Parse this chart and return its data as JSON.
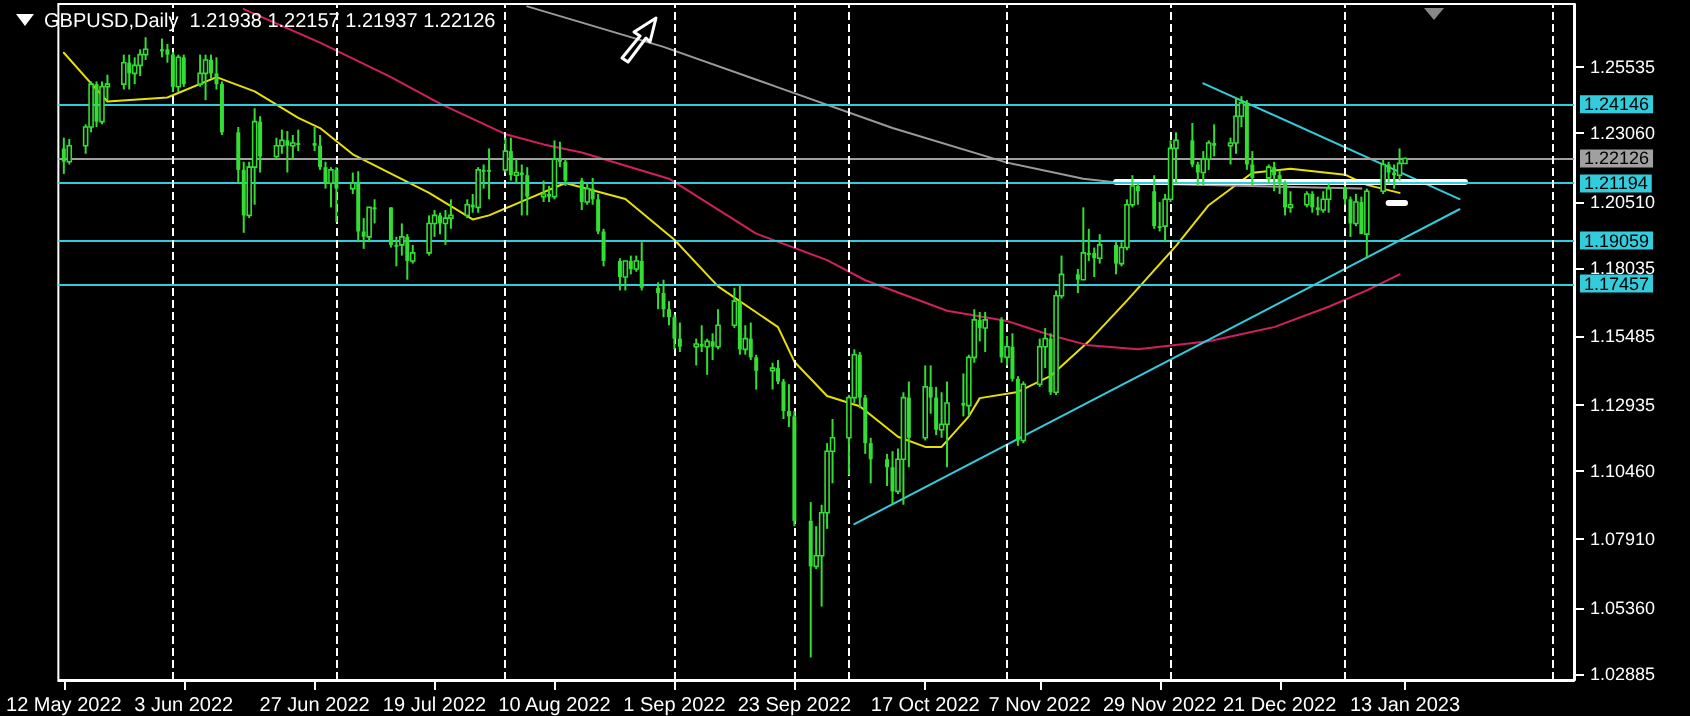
{
  "chart_data": {
    "type": "candlestick",
    "title": "GBPUSD,Daily  1.21938 1.22157 1.21937 1.22126",
    "color": "#33dd33",
    "x": [
      "2022-05-12",
      "2022-05-13",
      "2022-05-16",
      "2022-05-17",
      "2022-05-18",
      "2022-05-19",
      "2022-05-20",
      "2022-05-23",
      "2022-05-24",
      "2022-05-25",
      "2022-05-26",
      "2022-05-27",
      "2022-05-30",
      "2022-05-31",
      "2022-06-01",
      "2022-06-02",
      "2022-06-03",
      "2022-06-06",
      "2022-06-07",
      "2022-06-08",
      "2022-06-09",
      "2022-06-10",
      "2022-06-13",
      "2022-06-14",
      "2022-06-15",
      "2022-06-16",
      "2022-06-17",
      "2022-06-20",
      "2022-06-21",
      "2022-06-22",
      "2022-06-23",
      "2022-06-24",
      "2022-06-27",
      "2022-06-28",
      "2022-06-29",
      "2022-06-30",
      "2022-07-01",
      "2022-07-04",
      "2022-07-05",
      "2022-07-06",
      "2022-07-07",
      "2022-07-08",
      "2022-07-11",
      "2022-07-12",
      "2022-07-13",
      "2022-07-14",
      "2022-07-15",
      "2022-07-18",
      "2022-07-19",
      "2022-07-20",
      "2022-07-21",
      "2022-07-22",
      "2022-07-25",
      "2022-07-26",
      "2022-07-27",
      "2022-07-28",
      "2022-07-29",
      "2022-08-01",
      "2022-08-02",
      "2022-08-03",
      "2022-08-04",
      "2022-08-05",
      "2022-08-08",
      "2022-08-09",
      "2022-08-10",
      "2022-08-11",
      "2022-08-12",
      "2022-08-15",
      "2022-08-16",
      "2022-08-17",
      "2022-08-18",
      "2022-08-19",
      "2022-08-22",
      "2022-08-23",
      "2022-08-24",
      "2022-08-25",
      "2022-08-26",
      "2022-08-29",
      "2022-08-30",
      "2022-08-31",
      "2022-09-01",
      "2022-09-02",
      "2022-09-05",
      "2022-09-06",
      "2022-09-07",
      "2022-09-08",
      "2022-09-09",
      "2022-09-12",
      "2022-09-13",
      "2022-09-14",
      "2022-09-15",
      "2022-09-16",
      "2022-09-19",
      "2022-09-20",
      "2022-09-21",
      "2022-09-22",
      "2022-09-23",
      "2022-09-26",
      "2022-09-27",
      "2022-09-28",
      "2022-09-29",
      "2022-09-30",
      "2022-10-03",
      "2022-10-04",
      "2022-10-05",
      "2022-10-06",
      "2022-10-07",
      "2022-10-10",
      "2022-10-11",
      "2022-10-12",
      "2022-10-13",
      "2022-10-14",
      "2022-10-17",
      "2022-10-18",
      "2022-10-19",
      "2022-10-20",
      "2022-10-21",
      "2022-10-24",
      "2022-10-25",
      "2022-10-26",
      "2022-10-27",
      "2022-10-28",
      "2022-10-31",
      "2022-11-01",
      "2022-11-02",
      "2022-11-03",
      "2022-11-04",
      "2022-11-07",
      "2022-11-08",
      "2022-11-09",
      "2022-11-10",
      "2022-11-11",
      "2022-11-14",
      "2022-11-15",
      "2022-11-16",
      "2022-11-17",
      "2022-11-18",
      "2022-11-21",
      "2022-11-22",
      "2022-11-23",
      "2022-11-24",
      "2022-11-25",
      "2022-11-28",
      "2022-11-29",
      "2022-11-30",
      "2022-12-01",
      "2022-12-02",
      "2022-12-05",
      "2022-12-06",
      "2022-12-07",
      "2022-12-08",
      "2022-12-09",
      "2022-12-12",
      "2022-12-13",
      "2022-12-14",
      "2022-12-15",
      "2022-12-16",
      "2022-12-19",
      "2022-12-20",
      "2022-12-21",
      "2022-12-22",
      "2022-12-23",
      "2022-12-26",
      "2022-12-27",
      "2022-12-28",
      "2022-12-29",
      "2022-12-30",
      "2023-01-02",
      "2023-01-03",
      "2023-01-04",
      "2023-01-05",
      "2023-01-06",
      "2023-01-09",
      "2023-01-10",
      "2023-01-11",
      "2023-01-12",
      "2023-01-13"
    ],
    "xlim": [
      "2022-05-11",
      "2023-02-13"
    ],
    "ohlc": [
      [
        1.225,
        1.229,
        1.2155,
        1.22
      ],
      [
        1.22,
        1.2285,
        1.219,
        1.226
      ],
      [
        1.226,
        1.234,
        1.223,
        1.233
      ],
      [
        1.233,
        1.25,
        1.231,
        1.249
      ],
      [
        1.249,
        1.25,
        1.233,
        1.235
      ],
      [
        1.235,
        1.25,
        1.234,
        1.248
      ],
      [
        1.248,
        1.2525,
        1.243,
        1.249
      ],
      [
        1.249,
        1.26,
        1.247,
        1.257
      ],
      [
        1.257,
        1.26,
        1.247,
        1.253
      ],
      [
        1.253,
        1.259,
        1.249,
        1.256
      ],
      [
        1.256,
        1.262,
        1.252,
        1.26
      ],
      [
        1.26,
        1.2665,
        1.258,
        1.262
      ],
      [
        1.262,
        1.266,
        1.259,
        1.262
      ],
      [
        1.262,
        1.264,
        1.257,
        1.26
      ],
      [
        1.26,
        1.261,
        1.246,
        1.248
      ],
      [
        1.248,
        1.26,
        1.246,
        1.259
      ],
      [
        1.259,
        1.26,
        1.248,
        1.249
      ],
      [
        1.249,
        1.26,
        1.248,
        1.253
      ],
      [
        1.253,
        1.26,
        1.243,
        1.258
      ],
      [
        1.258,
        1.26,
        1.251,
        1.253
      ],
      [
        1.253,
        1.259,
        1.247,
        1.249
      ],
      [
        1.249,
        1.25,
        1.23,
        1.231
      ],
      [
        1.231,
        1.233,
        1.212,
        1.217
      ],
      [
        1.217,
        1.22,
        1.1935,
        1.2
      ],
      [
        1.2,
        1.22,
        1.199,
        1.218
      ],
      [
        1.218,
        1.24,
        1.204,
        1.235
      ],
      [
        1.235,
        1.237,
        1.216,
        1.222
      ],
      [
        1.222,
        1.229,
        1.221,
        1.226
      ],
      [
        1.226,
        1.232,
        1.223,
        1.228
      ],
      [
        1.228,
        1.2315,
        1.216,
        1.226
      ],
      [
        1.226,
        1.23,
        1.221,
        1.227
      ],
      [
        1.227,
        1.232,
        1.224,
        1.227
      ],
      [
        1.227,
        1.233,
        1.224,
        1.226
      ],
      [
        1.226,
        1.23,
        1.217,
        1.218
      ],
      [
        1.218,
        1.22,
        1.21,
        1.212
      ],
      [
        1.212,
        1.218,
        1.203,
        1.217
      ],
      [
        1.217,
        1.218,
        1.1975,
        1.21
      ],
      [
        1.21,
        1.216,
        1.208,
        1.212
      ],
      [
        1.212,
        1.2165,
        1.19,
        1.194
      ],
      [
        1.194,
        1.199,
        1.1875,
        1.192
      ],
      [
        1.192,
        1.203,
        1.19,
        1.203
      ],
      [
        1.203,
        1.206,
        1.197,
        1.203
      ],
      [
        1.203,
        1.203,
        1.188,
        1.189
      ],
      [
        1.189,
        1.192,
        1.181,
        1.189
      ],
      [
        1.189,
        1.197,
        1.185,
        1.192
      ],
      [
        1.192,
        1.193,
        1.176,
        1.183
      ],
      [
        1.183,
        1.189,
        1.182,
        1.186
      ],
      [
        1.186,
        1.2,
        1.185,
        1.197
      ],
      [
        1.197,
        1.202,
        1.192,
        1.2
      ],
      [
        1.2,
        1.201,
        1.193,
        1.197
      ],
      [
        1.197,
        1.202,
        1.189,
        1.199
      ],
      [
        1.199,
        1.206,
        1.195,
        1.2
      ],
      [
        1.2,
        1.206,
        1.199,
        1.204
      ],
      [
        1.204,
        1.208,
        1.201,
        1.203
      ],
      [
        1.203,
        1.218,
        1.201,
        1.217
      ],
      [
        1.217,
        1.219,
        1.21,
        1.217
      ],
      [
        1.217,
        1.225,
        1.206,
        1.217
      ],
      [
        1.217,
        1.229,
        1.216,
        1.224
      ],
      [
        1.224,
        1.229,
        1.213,
        1.215
      ],
      [
        1.215,
        1.221,
        1.212,
        1.216
      ],
      [
        1.216,
        1.219,
        1.2,
        1.215
      ],
      [
        1.215,
        1.218,
        1.2,
        1.207
      ],
      [
        1.207,
        1.213,
        1.205,
        1.208
      ],
      [
        1.208,
        1.211,
        1.205,
        1.207
      ],
      [
        1.207,
        1.228,
        1.206,
        1.221
      ],
      [
        1.221,
        1.2275,
        1.218,
        1.22
      ],
      [
        1.22,
        1.221,
        1.211,
        1.213
      ],
      [
        1.213,
        1.214,
        1.202,
        1.205
      ],
      [
        1.205,
        1.212,
        1.204,
        1.21
      ],
      [
        1.21,
        1.214,
        1.204,
        1.206
      ],
      [
        1.206,
        1.208,
        1.193,
        1.194
      ],
      [
        1.194,
        1.195,
        1.181,
        1.183
      ],
      [
        1.183,
        1.184,
        1.172,
        1.177
      ],
      [
        1.177,
        1.183,
        1.172,
        1.183
      ],
      [
        1.183,
        1.185,
        1.178,
        1.18
      ],
      [
        1.18,
        1.185,
        1.179,
        1.183
      ],
      [
        1.183,
        1.19,
        1.172,
        1.173
      ],
      [
        1.173,
        1.175,
        1.165,
        1.171
      ],
      [
        1.171,
        1.176,
        1.162,
        1.165
      ],
      [
        1.165,
        1.168,
        1.159,
        1.162
      ],
      [
        1.162,
        1.163,
        1.15,
        1.154
      ],
      [
        1.154,
        1.16,
        1.149,
        1.151
      ],
      [
        1.151,
        1.154,
        1.144,
        1.152
      ],
      [
        1.152,
        1.159,
        1.149,
        1.151
      ],
      [
        1.151,
        1.154,
        1.1405,
        1.153
      ],
      [
        1.153,
        1.156,
        1.146,
        1.151
      ],
      [
        1.151,
        1.165,
        1.15,
        1.159
      ],
      [
        1.159,
        1.173,
        1.158,
        1.168
      ],
      [
        1.168,
        1.174,
        1.148,
        1.15
      ],
      [
        1.15,
        1.159,
        1.148,
        1.154
      ],
      [
        1.154,
        1.16,
        1.146,
        1.147
      ],
      [
        1.147,
        1.148,
        1.135,
        1.142
      ],
      [
        1.142,
        1.145,
        1.135,
        1.143
      ],
      [
        1.143,
        1.146,
        1.137,
        1.138
      ],
      [
        1.138,
        1.139,
        1.124,
        1.127
      ],
      [
        1.127,
        1.137,
        1.121,
        1.125
      ],
      [
        1.125,
        1.127,
        1.084,
        1.086
      ],
      [
        1.086,
        1.093,
        1.035,
        1.069
      ],
      [
        1.069,
        1.084,
        1.068,
        1.073
      ],
      [
        1.073,
        1.092,
        1.054,
        1.089
      ],
      [
        1.089,
        1.115,
        1.083,
        1.112
      ],
      [
        1.112,
        1.124,
        1.1,
        1.117
      ],
      [
        1.117,
        1.133,
        1.103,
        1.132
      ],
      [
        1.132,
        1.15,
        1.13,
        1.148
      ],
      [
        1.148,
        1.149,
        1.128,
        1.132
      ],
      [
        1.132,
        1.133,
        1.111,
        1.115
      ],
      [
        1.115,
        1.117,
        1.1,
        1.109
      ],
      [
        1.109,
        1.111,
        1.099,
        1.106
      ],
      [
        1.106,
        1.112,
        1.092,
        1.097
      ],
      [
        1.097,
        1.113,
        1.096,
        1.109
      ],
      [
        1.109,
        1.134,
        1.092,
        1.132
      ],
      [
        1.132,
        1.138,
        1.106,
        1.117
      ],
      [
        1.117,
        1.144,
        1.116,
        1.136
      ],
      [
        1.136,
        1.144,
        1.126,
        1.132
      ],
      [
        1.132,
        1.136,
        1.118,
        1.12
      ],
      [
        1.12,
        1.134,
        1.117,
        1.122
      ],
      [
        1.122,
        1.138,
        1.106,
        1.13
      ],
      [
        1.13,
        1.141,
        1.125,
        1.129
      ],
      [
        1.129,
        1.148,
        1.125,
        1.147
      ],
      [
        1.147,
        1.165,
        1.145,
        1.161
      ],
      [
        1.161,
        1.164,
        1.153,
        1.158
      ],
      [
        1.158,
        1.164,
        1.149,
        1.161
      ],
      [
        1.161,
        1.162,
        1.145,
        1.147
      ],
      [
        1.147,
        1.155,
        1.144,
        1.151
      ],
      [
        1.151,
        1.156,
        1.138,
        1.139
      ],
      [
        1.139,
        1.14,
        1.114,
        1.116
      ],
      [
        1.116,
        1.138,
        1.115,
        1.137
      ],
      [
        1.137,
        1.154,
        1.136,
        1.151
      ],
      [
        1.151,
        1.158,
        1.143,
        1.154
      ],
      [
        1.154,
        1.156,
        1.133,
        1.134
      ],
      [
        1.134,
        1.172,
        1.133,
        1.17
      ],
      [
        1.17,
        1.185,
        1.169,
        1.178
      ],
      [
        1.178,
        1.18,
        1.171,
        1.176
      ],
      [
        1.176,
        1.203,
        1.176,
        1.186
      ],
      [
        1.186,
        1.195,
        1.183,
        1.186
      ],
      [
        1.186,
        1.188,
        1.177,
        1.184
      ],
      [
        1.184,
        1.193,
        1.182,
        1.189
      ],
      [
        1.189,
        1.19,
        1.178,
        1.182
      ],
      [
        1.182,
        1.19,
        1.181,
        1.188
      ],
      [
        1.188,
        1.206,
        1.187,
        1.204
      ],
      [
        1.204,
        1.215,
        1.203,
        1.211
      ],
      [
        1.211,
        1.212,
        1.204,
        1.209
      ],
      [
        1.209,
        1.215,
        1.195,
        1.196
      ],
      [
        1.196,
        1.205,
        1.194,
        1.196
      ],
      [
        1.196,
        1.208,
        1.19,
        1.206
      ],
      [
        1.206,
        1.228,
        1.205,
        1.225
      ],
      [
        1.225,
        1.231,
        1.212,
        1.228
      ],
      [
        1.228,
        1.2345,
        1.218,
        1.219
      ],
      [
        1.219,
        1.22,
        1.211,
        1.216
      ],
      [
        1.216,
        1.224,
        1.211,
        1.221
      ],
      [
        1.221,
        1.228,
        1.217,
        1.227
      ],
      [
        1.227,
        1.234,
        1.222,
        1.226
      ],
      [
        1.226,
        1.229,
        1.219,
        1.227
      ],
      [
        1.227,
        1.244,
        1.223,
        1.237
      ],
      [
        1.237,
        1.2445,
        1.233,
        1.242
      ],
      [
        1.242,
        1.243,
        1.217,
        1.219
      ],
      [
        1.219,
        1.224,
        1.211,
        1.214
      ],
      [
        1.214,
        1.219,
        1.212,
        1.218
      ],
      [
        1.218,
        1.22,
        1.209,
        1.215
      ],
      [
        1.215,
        1.217,
        1.208,
        1.212
      ],
      [
        1.212,
        1.213,
        1.2,
        1.203
      ],
      [
        1.203,
        1.209,
        1.201,
        1.204
      ],
      [
        1.204,
        1.209,
        1.203,
        1.208
      ],
      [
        1.208,
        1.209,
        1.201,
        1.203
      ],
      [
        1.203,
        1.207,
        1.2,
        1.202
      ],
      [
        1.202,
        1.209,
        1.201,
        1.206
      ],
      [
        1.206,
        1.212,
        1.201,
        1.21
      ],
      [
        1.21,
        1.211,
        1.204,
        1.206
      ],
      [
        1.206,
        1.207,
        1.192,
        1.197
      ],
      [
        1.197,
        1.208,
        1.196,
        1.205
      ],
      [
        1.205,
        1.207,
        1.193,
        1.193
      ],
      [
        1.193,
        1.21,
        1.184,
        1.209
      ],
      [
        1.209,
        1.221,
        1.208,
        1.219
      ],
      [
        1.219,
        1.22,
        1.212,
        1.216
      ],
      [
        1.216,
        1.219,
        1.21,
        1.215
      ],
      [
        1.215,
        1.225,
        1.213,
        1.2194
      ],
      [
        1.21938,
        1.22157,
        1.21937,
        1.22126
      ]
    ],
    "series": [
      {
        "type": "line",
        "color": "#e8e000",
        "x": [
          "2022-05-12",
          "2022-05-17",
          "2022-05-20",
          "2022-05-31",
          "2022-06-09",
          "2022-06-16",
          "2022-06-24",
          "2022-06-28",
          "2022-07-04",
          "2022-07-18",
          "2022-07-26",
          "2022-07-29",
          "2022-08-05",
          "2022-08-12",
          "2022-08-23",
          "2022-09-01",
          "2022-09-09",
          "2022-09-20",
          "2022-09-23",
          "2022-09-29",
          "2022-10-05",
          "2022-10-12",
          "2022-10-17",
          "2022-10-20",
          "2022-10-25",
          "2022-10-27",
          "2022-11-03",
          "2022-11-09",
          "2022-11-16",
          "2022-11-23",
          "2022-12-02",
          "2022-12-08",
          "2022-12-16",
          "2022-12-23",
          "2023-01-02",
          "2023-01-06",
          "2023-01-12"
        ],
        "values": [
          1.2607,
          1.2493,
          1.2425,
          1.244,
          1.2516,
          1.2463,
          1.2364,
          1.2326,
          1.2228,
          1.2084,
          1.1985,
          1.2,
          1.2061,
          1.2121,
          1.2061,
          1.1909,
          1.1735,
          1.1583,
          1.1454,
          1.1326,
          1.1288,
          1.1174,
          1.1136,
          1.1136,
          1.125,
          1.1318,
          1.1341,
          1.1401,
          1.153,
          1.1682,
          1.1886,
          1.2038,
          1.2159,
          1.2174,
          1.2152,
          1.2114,
          1.2084
        ]
      },
      {
        "type": "line",
        "color": "#d02060",
        "x": [
          "2022-06-14",
          "2022-06-28",
          "2022-07-11",
          "2022-07-20",
          "2022-08-01",
          "2022-08-08",
          "2022-08-15",
          "2022-08-31",
          "2022-09-16",
          "2022-09-29",
          "2022-10-06",
          "2022-10-21",
          "2022-11-01",
          "2022-11-09",
          "2022-11-16",
          "2022-11-25",
          "2022-12-08",
          "2022-12-20",
          "2022-12-30",
          "2023-01-06",
          "2023-01-12"
        ],
        "values": [
          1.277,
          1.2645,
          1.2516,
          1.2417,
          1.2303,
          1.2265,
          1.2235,
          1.2137,
          1.1932,
          1.1833,
          1.1758,
          1.1644,
          1.1606,
          1.1553,
          1.1515,
          1.15,
          1.153,
          1.1583,
          1.1659,
          1.172,
          1.178
        ]
      },
      {
        "type": "line",
        "color": "#9a9a9a",
        "x": [
          "2022-08-05",
          "2022-08-30",
          "2022-09-20",
          "2022-10-11",
          "2022-11-01",
          "2022-11-15",
          "2022-11-22",
          "2023-01-05"
        ],
        "values": [
          1.278,
          1.2629,
          1.2478,
          1.2326,
          1.2197,
          1.2137,
          1.2121,
          1.21
        ]
      },
      {
        "type": "line",
        "color": "#33ccdd",
        "x": [
          "2022-12-07",
          "2023-01-23"
        ],
        "values": [
          1.2493,
          1.2061
        ]
      },
      {
        "type": "line",
        "color": "#33ccdd",
        "x": [
          "2022-10-04",
          "2023-01-23"
        ],
        "values": [
          1.0848,
          1.2023
        ]
      },
      {
        "type": "line",
        "color": "#ffffff",
        "x": [
          "2022-11-21",
          "2023-01-24"
        ],
        "values": [
          1.2125,
          1.2125
        ]
      },
      {
        "type": "line",
        "color": "#ffffff",
        "x": [
          "2023-01-10",
          "2023-01-13"
        ],
        "values": [
          1.2046,
          1.2046
        ]
      }
    ],
    "ylim": [
      1.0266,
      1.2789
    ],
    "yticks": [
      {
        "value": 1.25535,
        "label": "1.25535"
      },
      {
        "value": 1.2306,
        "label": "1.23060"
      },
      {
        "value": 1.2051,
        "label": "1.20510"
      },
      {
        "value": 1.18035,
        "label": "1.18035"
      },
      {
        "value": 1.15485,
        "label": "1.15485"
      },
      {
        "value": 1.12935,
        "label": "1.12935"
      },
      {
        "value": 1.1046,
        "label": "1.10460"
      },
      {
        "value": 1.0791,
        "label": "1.07910"
      },
      {
        "value": 1.0536,
        "label": "1.05360"
      },
      {
        "value": 1.02885,
        "label": "1.02885"
      }
    ],
    "xticks": [
      {
        "value": "2022-05-12",
        "label": "12 May 2022"
      },
      {
        "value": "2022-06-03",
        "label": "3 Jun 2022"
      },
      {
        "value": "2022-06-27",
        "label": "27 Jun 2022"
      },
      {
        "value": "2022-07-19",
        "label": "19 Jul 2022"
      },
      {
        "value": "2022-08-10",
        "label": "10 Aug 2022"
      },
      {
        "value": "2022-09-01",
        "label": "1 Sep 2022"
      },
      {
        "value": "2022-09-23",
        "label": "23 Sep 2022"
      },
      {
        "value": "2022-10-17",
        "label": "17 Oct 2022"
      },
      {
        "value": "2022-11-07",
        "label": "7 Nov 2022"
      },
      {
        "value": "2022-11-29",
        "label": "29 Nov 2022"
      },
      {
        "value": "2022-12-21",
        "label": "21 Dec 2022"
      },
      {
        "value": "2023-01-13",
        "label": "13 Jan 2023"
      }
    ],
    "ref_lines": [
      {
        "axis": "y",
        "value": 1.24146,
        "label": "1.24146",
        "color": "#33ccdd"
      },
      {
        "axis": "y",
        "value": 1.22126,
        "label": "1.22126",
        "color": "#a0a0a0"
      },
      {
        "axis": "y",
        "value": 1.21194,
        "label": "1.21194",
        "color": "#33ccdd"
      },
      {
        "axis": "y",
        "value": 1.19059,
        "label": "1.19059",
        "color": "#33ccdd"
      },
      {
        "axis": "y",
        "value": 1.17457,
        "label": "1.17457",
        "color": "#33ccdd"
      },
      {
        "axis": "x",
        "value": "2022-06-01",
        "color": "#ffffff",
        "line_style": "dashed"
      },
      {
        "axis": "x",
        "value": "2022-07-01",
        "color": "#ffffff",
        "line_style": "dashed"
      },
      {
        "axis": "x",
        "value": "2022-08-01",
        "color": "#ffffff",
        "line_style": "dashed"
      },
      {
        "axis": "x",
        "value": "2022-09-01",
        "color": "#ffffff",
        "line_style": "dashed"
      },
      {
        "axis": "x",
        "value": "2022-09-23",
        "color": "#ffffff",
        "line_style": "dashed"
      },
      {
        "axis": "x",
        "value": "2022-10-03",
        "color": "#ffffff",
        "line_style": "dashed"
      },
      {
        "axis": "x",
        "value": "2022-11-01",
        "color": "#ffffff",
        "line_style": "dashed"
      },
      {
        "axis": "x",
        "value": "2022-12-01",
        "color": "#ffffff",
        "line_style": "dashed"
      },
      {
        "axis": "x",
        "value": "2023-01-02",
        "color": "#ffffff",
        "line_style": "dashed"
      },
      {
        "axis": "x",
        "value": "2023-02-09",
        "color": "#ffffff",
        "line_style": "dashed"
      }
    ],
    "grid": false,
    "marker": "none"
  }
}
